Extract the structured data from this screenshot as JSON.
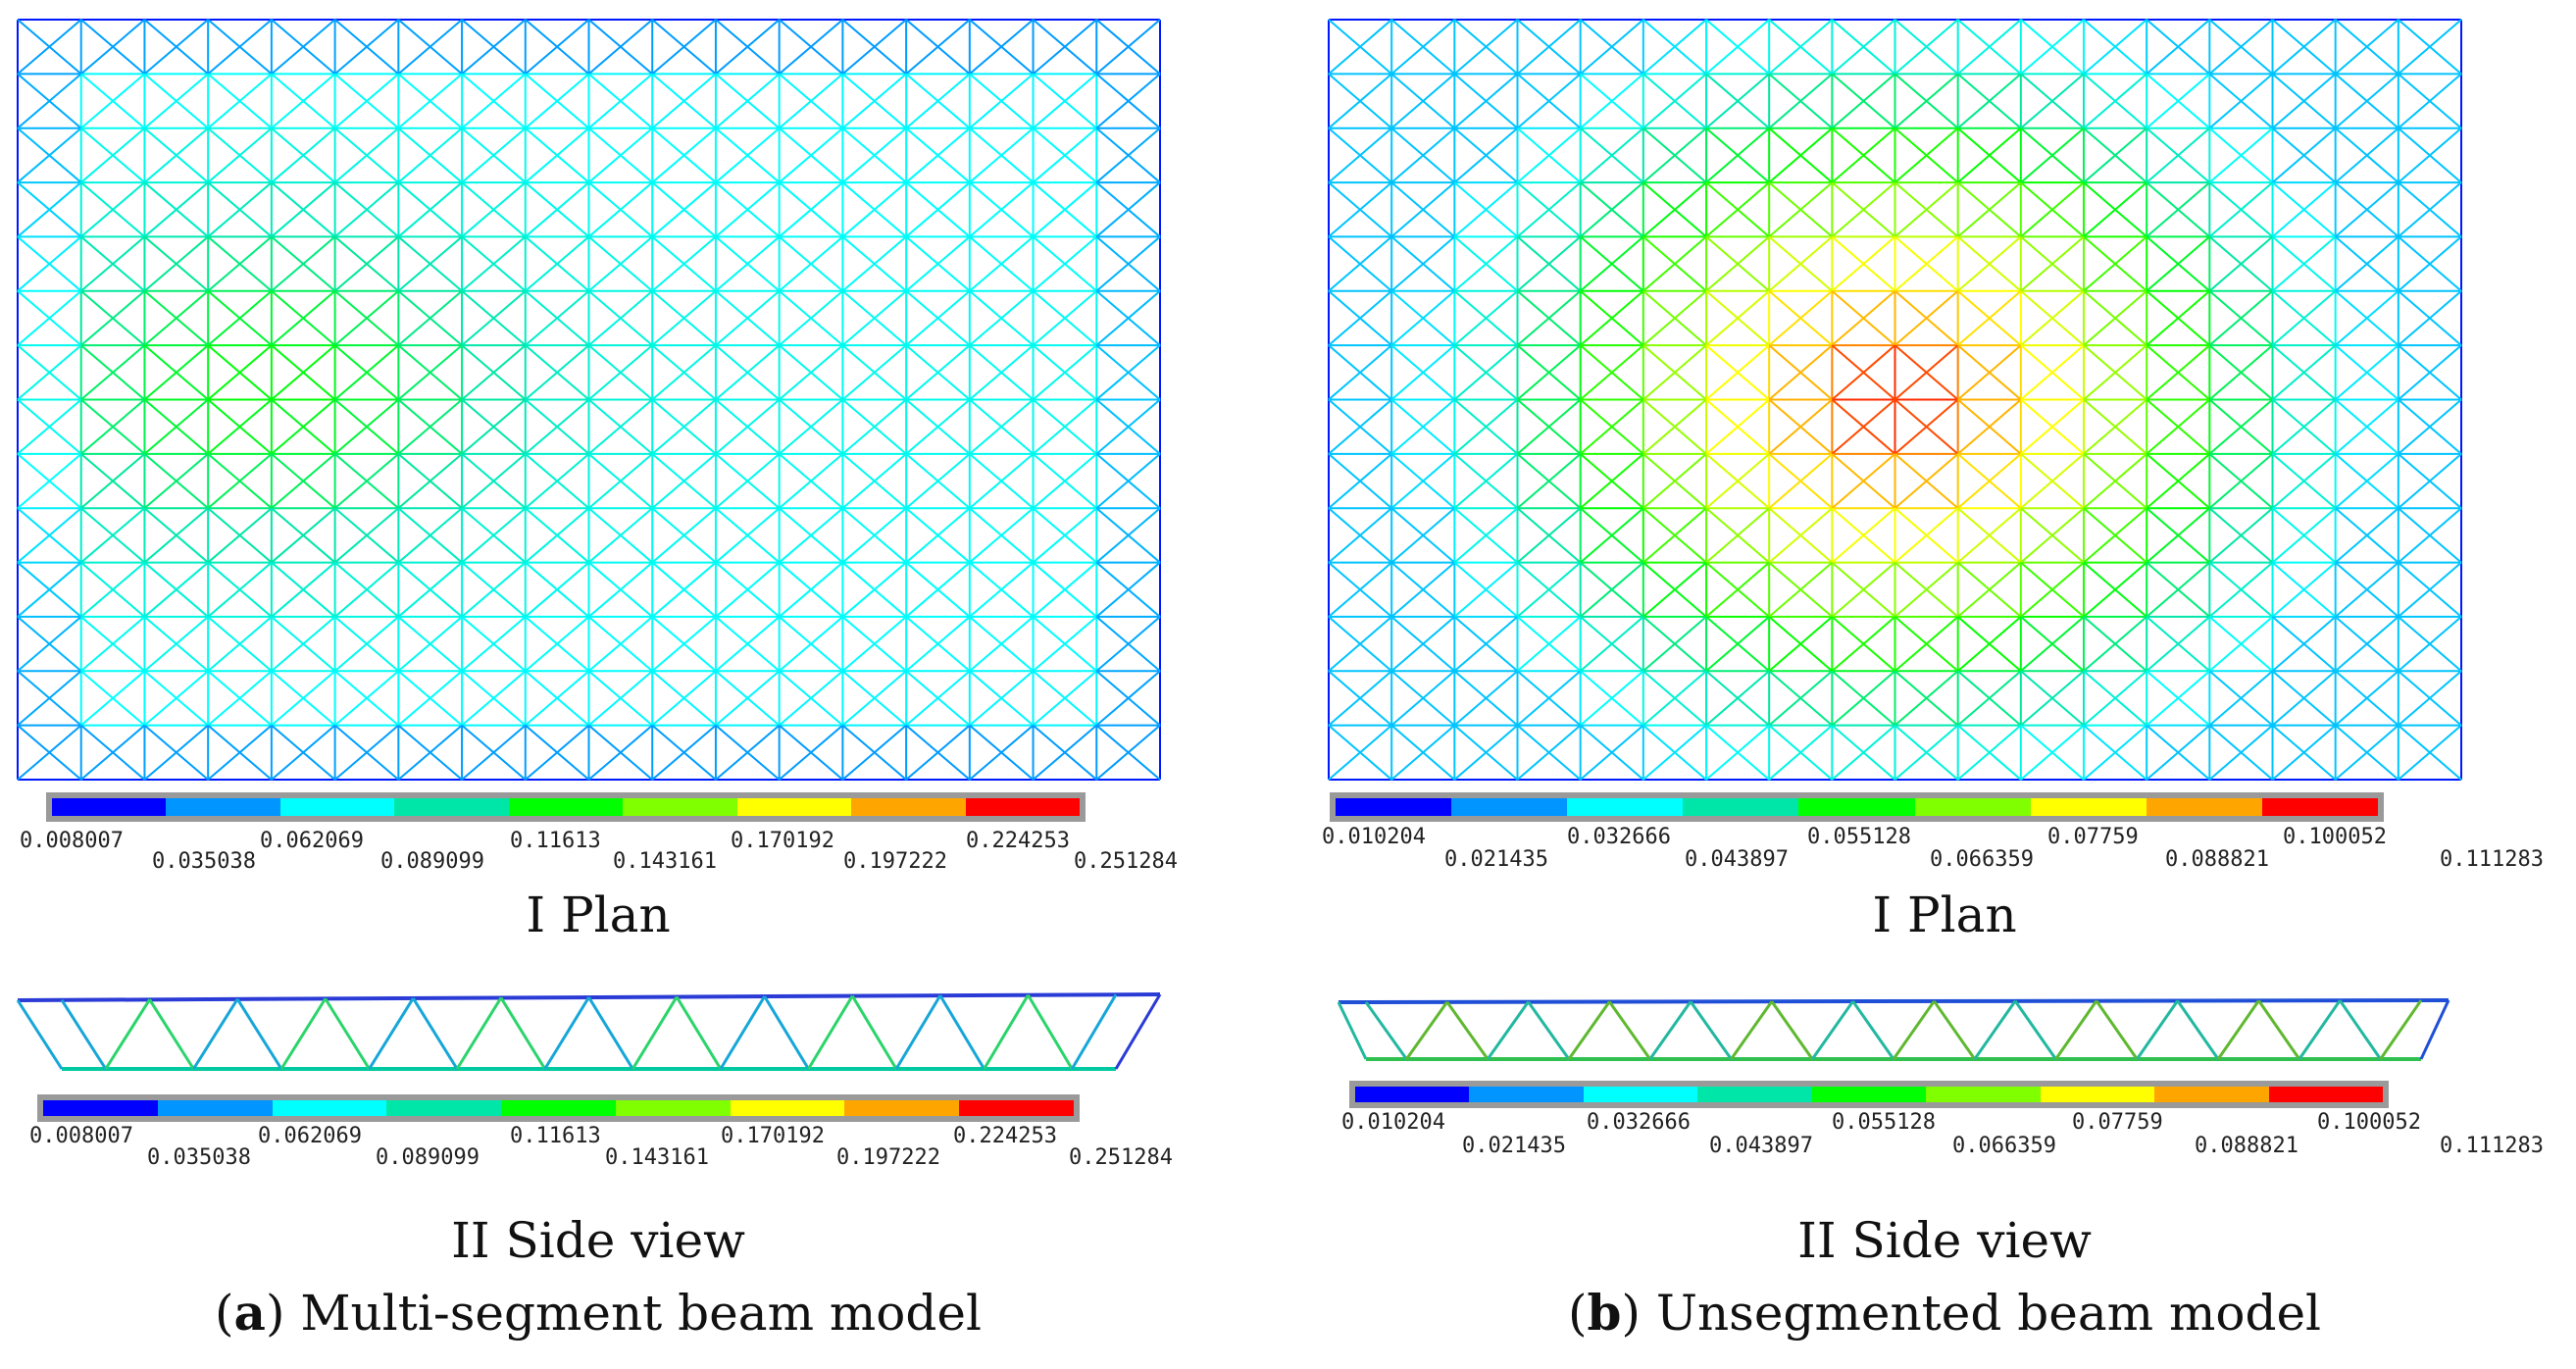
{
  "panels": [
    {
      "letter": "a",
      "caption_text": "Multi-segment beam model",
      "plan_title": "I Plan",
      "side_title": "II Side view",
      "ticks": [
        "0.008007",
        "0.035038",
        "0.062069",
        "0.089099",
        "0.11613",
        "0.143161",
        "0.170192",
        "0.197222",
        "0.224253",
        "0.251284"
      ]
    },
    {
      "letter": "b",
      "caption_text": "Unsegmented beam model",
      "plan_title": "I Plan",
      "side_title": "II Side view",
      "ticks": [
        "0.010204",
        "0.021435",
        "0.032666",
        "0.043897",
        "0.055128",
        "0.066359",
        "0.07759",
        "0.088821",
        "0.100052",
        "0.111283"
      ]
    }
  ],
  "colormap": [
    "#0000ff",
    "#0095ff",
    "#00ffff",
    "#00e6a8",
    "#00ff00",
    "#80ff00",
    "#ffff00",
    "#ffa500",
    "#ff0000"
  ]
}
